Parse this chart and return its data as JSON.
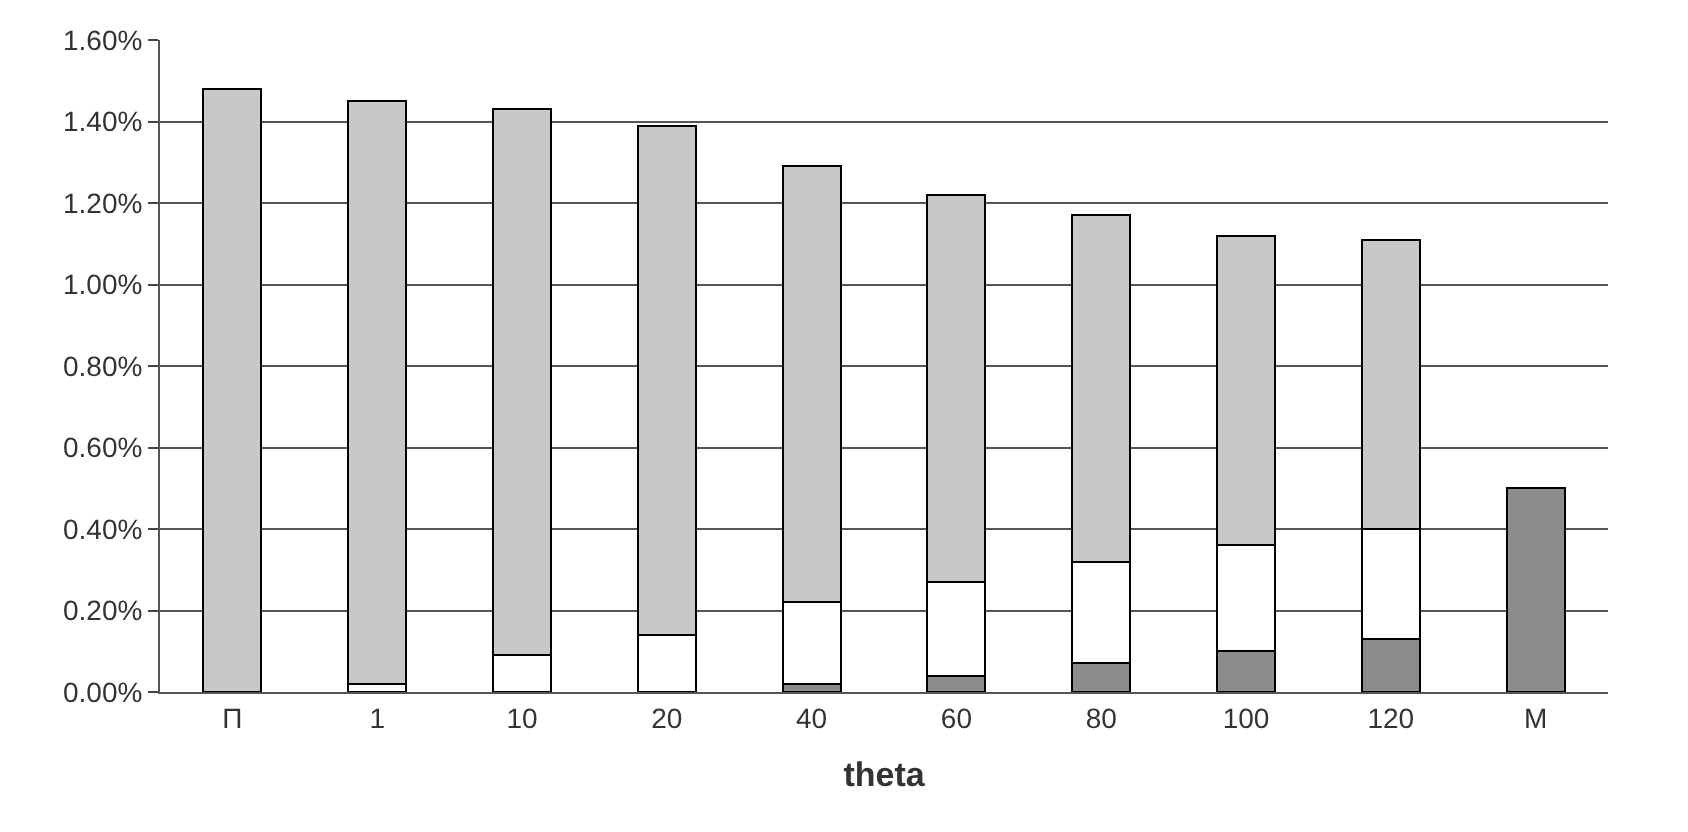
{
  "chart_data": {
    "type": "bar",
    "stacked": true,
    "xlabel": "theta",
    "categories": [
      "П",
      "1",
      "10",
      "20",
      "40",
      "60",
      "80",
      "100",
      "120",
      "M"
    ],
    "series": [
      {
        "color": "#8c8c8c",
        "values": [
          null,
          null,
          null,
          null,
          0.02,
          0.04,
          0.07,
          0.1,
          0.13,
          0.5
        ]
      },
      {
        "color": "#ffffff",
        "values": [
          null,
          0.02,
          0.09,
          0.14,
          0.2,
          0.23,
          0.25,
          0.26,
          0.27,
          null
        ]
      },
      {
        "color": "#c8c8c8",
        "values": [
          1.48,
          1.43,
          1.34,
          1.25,
          1.07,
          0.95,
          0.85,
          0.76,
          0.71,
          null
        ]
      }
    ],
    "ylim": [
      0,
      1.6
    ],
    "yticks": [
      {
        "value": 0,
        "label": "0.00%"
      },
      {
        "value": 0.2,
        "label": "0.20%"
      },
      {
        "value": 0.4,
        "label": "0.40%"
      },
      {
        "value": 0.6,
        "label": "0.60%"
      },
      {
        "value": 0.8,
        "label": "0.80%"
      },
      {
        "value": 1.0,
        "label": "1.00%"
      },
      {
        "value": 1.2,
        "label": "1.20%"
      },
      {
        "value": 1.4,
        "label": "1.40%"
      },
      {
        "value": 1.6,
        "label": "1.60%"
      }
    ],
    "grid": "y"
  }
}
